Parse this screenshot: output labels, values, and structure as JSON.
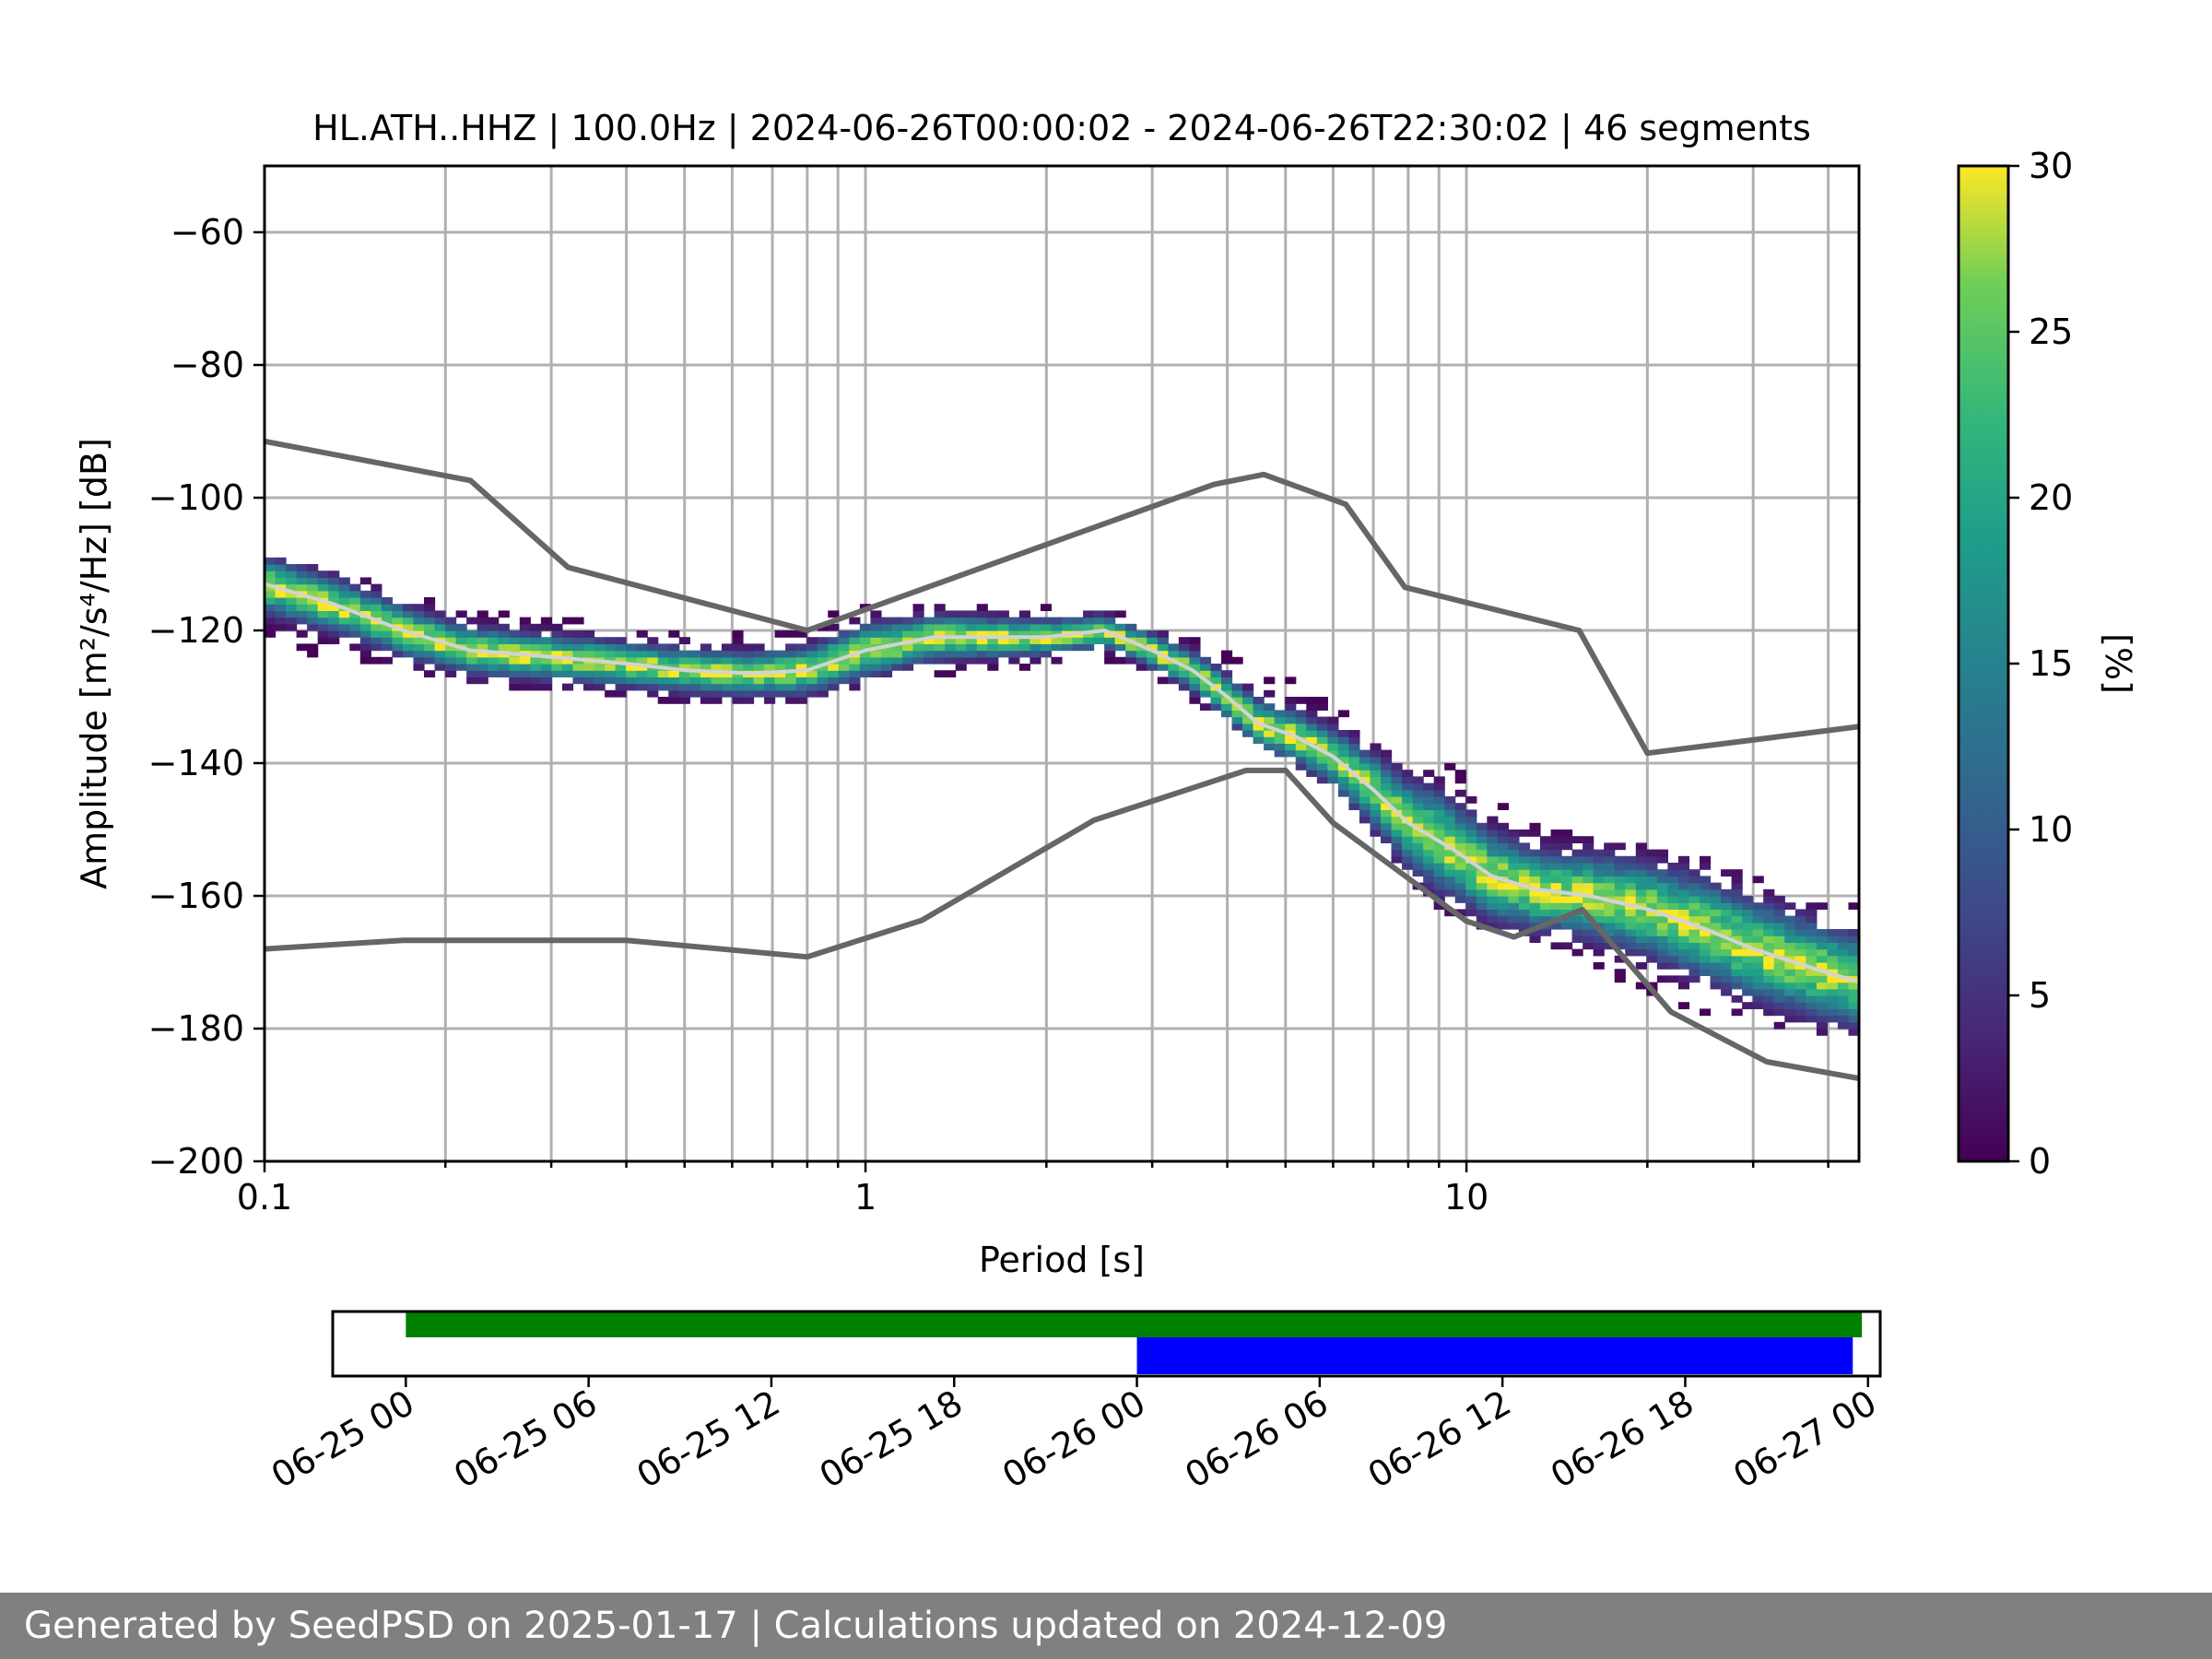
{
  "chart_data": [
    {
      "type": "heatmap",
      "title": "HL.ATH..HHZ | 100.0Hz | 2024-06-26T00:00:02 - 2024-06-26T22:30:02 | 46 segments",
      "xlabel": "Period [s]",
      "ylabel": "Amplitude [m²/s⁴/Hz] [dB]",
      "x_scale": "log",
      "xlim": [
        0.1,
        45
      ],
      "ylim": [
        -200,
        -50
      ],
      "x_ticks": [
        "0.1",
        "1",
        "10"
      ],
      "y_ticks": [
        "−200",
        "−180",
        "−160",
        "−140",
        "−120",
        "−100",
        "−80",
        "−60"
      ],
      "grid": true,
      "colorbar": {
        "label": "[%]",
        "range": [
          0,
          30
        ],
        "ticks": [
          "0",
          "5",
          "10",
          "15",
          "20",
          "25",
          "30"
        ],
        "colormap": "viridis"
      },
      "series": [
        {
          "name": "mode",
          "color": "#d3d3d3",
          "x": [
            0.1,
            0.13,
            0.17,
            0.22,
            0.3,
            0.4,
            0.5,
            0.65,
            0.8,
            1.0,
            1.3,
            1.6,
            2.0,
            2.5,
            3.0,
            3.5,
            4.0,
            4.5,
            5.2,
            6.0,
            7.0,
            8.0,
            9.5,
            11,
            13,
            16,
            20,
            25,
            30,
            38,
            45
          ],
          "y": [
            -113,
            -116,
            -120,
            -123,
            -124,
            -125,
            -126,
            -126.5,
            -126,
            -123,
            -121,
            -121,
            -121,
            -120,
            -123,
            -126,
            -130,
            -134,
            -136,
            -139,
            -144,
            -149,
            -153,
            -157,
            -159,
            -160,
            -162,
            -165,
            -168,
            -171,
            -173
          ]
        },
        {
          "name": "NHNM",
          "color": "#666666",
          "x": [
            0.1,
            0.22,
            0.32,
            0.8,
            3.8,
            4.6,
            6.3,
            7.9,
            15.4,
            20,
            45
          ],
          "y": [
            -91.5,
            -97.4,
            -110.5,
            -120,
            -98,
            -96.5,
            -101,
            -113.5,
            -120,
            -138.5,
            -134.5
          ]
        },
        {
          "name": "NLNM",
          "color": "#666666",
          "x": [
            0.1,
            0.17,
            0.4,
            0.8,
            1.24,
            2.4,
            4.3,
            5.0,
            6.0,
            10,
            12,
            15.6,
            21.9,
            31.6,
            45
          ],
          "y": [
            -168,
            -166.7,
            -166.7,
            -169.2,
            -163.7,
            -148.6,
            -141.1,
            -141.1,
            -149,
            -163.8,
            -166.2,
            -162.1,
            -177.5,
            -185,
            -187.5
          ]
        }
      ],
      "density": {
        "description": "probability density bands (% occurrences) around the mode",
        "bands": [
          {
            "x": [
              0.1,
              0.2,
              0.4,
              0.7,
              1.0,
              2.0,
              2.7,
              4.0,
              6.0,
              9.0,
              14.0,
              25.0,
              45.0
            ],
            "y_min": [
              -122,
              -127,
              -130,
              -131,
              -128,
              -125,
              -124,
              -134,
              -143,
              -162,
              -168,
              -178,
              -181
            ],
            "y_max": [
              -109,
              -116,
              -120,
              -121,
              -116,
              -117,
              -117,
              -124,
              -130,
              -140,
              -150,
              -155,
              -160
            ]
          }
        ]
      }
    },
    {
      "type": "timeline",
      "x_ticks": [
        "06-25 00",
        "06-25 06",
        "06-25 12",
        "06-25 18",
        "06-26 00",
        "06-26 06",
        "06-26 12",
        "06-26 18",
        "06-27 00"
      ],
      "x_range_hours": [
        -2.4,
        48.4
      ],
      "bars": [
        {
          "color": "#008000",
          "start_hour": 0,
          "end_hour": 47.8
        },
        {
          "color": "#0000ff",
          "start_hour": 24,
          "end_hour": 47.5
        }
      ]
    }
  ],
  "footer": {
    "text": "Generated by SeedPSD on 2025-01-17 | Calculations updated on 2024-12-09"
  }
}
